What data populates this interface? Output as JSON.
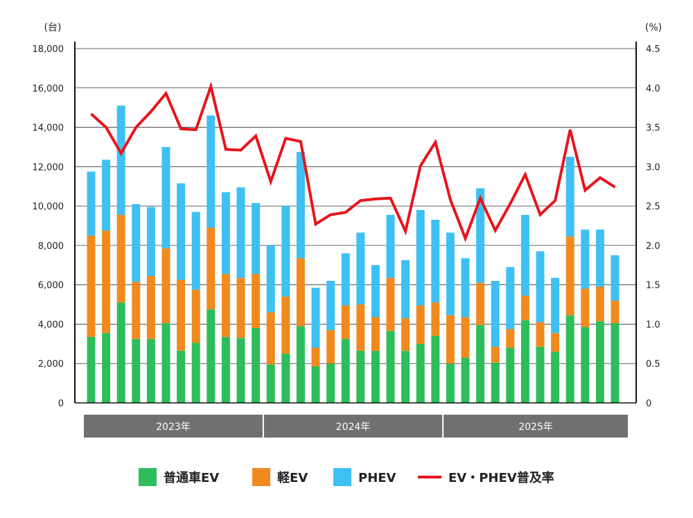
{
  "chart_data": {
    "type": "bar",
    "stacked": true,
    "y_left": {
      "unit": "(台)",
      "ylim": [
        0,
        18000
      ],
      "ticks": [
        "0",
        "2,000",
        "4,000",
        "6,000",
        "8,000",
        "10,000",
        "12,000",
        "14,000",
        "16,000",
        "18,000"
      ]
    },
    "y_right": {
      "unit": "(%)",
      "ylim": [
        0,
        4.5
      ],
      "ticks": [
        "0",
        "0.5",
        "1.0",
        "1.5",
        "2.0",
        "2.5",
        "3.0",
        "3.5",
        "4.0",
        "4.5"
      ]
    },
    "year_groups": [
      {
        "label": "2023年",
        "count": 12
      },
      {
        "label": "2024年",
        "count": 12
      },
      {
        "label": "2025年",
        "count": 12
      }
    ],
    "legend_position": "bottom",
    "grid": true,
    "series": [
      {
        "name": "普通車EV",
        "color": "#2dbd5b",
        "values": [
          3350,
          3550,
          5100,
          3250,
          3250,
          4050,
          2650,
          3050,
          4750,
          3350,
          3300,
          3800,
          1950,
          2500,
          3900,
          1850,
          2000,
          3250,
          2650,
          2650,
          3650,
          2650,
          3000,
          3400,
          2000,
          2300,
          3950,
          2050,
          2800,
          4200,
          2850,
          2600,
          4450,
          3850,
          4150,
          4050
        ]
      },
      {
        "name": "軽EV",
        "color": "#f08a1e",
        "values": [
          5150,
          5200,
          4450,
          2900,
          3200,
          3800,
          3600,
          2700,
          4150,
          3200,
          3050,
          2750,
          2650,
          2900,
          3450,
          950,
          1700,
          1700,
          2350,
          1700,
          2700,
          1650,
          1950,
          1700,
          2450,
          2050,
          2150,
          800,
          950,
          1250,
          1250,
          950,
          4000,
          1950,
          1750,
          1150
        ]
      },
      {
        "name": "PHEV",
        "color": "#3ec0f2",
        "values": [
          3250,
          3600,
          5550,
          3950,
          3500,
          5150,
          4900,
          3950,
          5700,
          4150,
          4600,
          3600,
          3400,
          4600,
          5400,
          3050,
          2500,
          2650,
          3650,
          2650,
          3200,
          2950,
          4850,
          4200,
          4200,
          3000,
          4800,
          3350,
          3150,
          4100,
          3600,
          2800,
          4050,
          3000,
          2900,
          2300
        ]
      },
      {
        "name": "EV・PHEV普及率",
        "color": "#e8141b",
        "type": "line",
        "values": [
          3.67,
          3.5,
          3.17,
          3.5,
          3.7,
          3.93,
          3.48,
          3.47,
          4.02,
          3.22,
          3.21,
          3.39,
          2.81,
          3.36,
          3.32,
          2.27,
          2.39,
          2.42,
          2.57,
          2.59,
          2.6,
          2.18,
          3.01,
          3.31,
          2.58,
          2.09,
          2.6,
          2.19,
          2.53,
          2.9,
          2.39,
          2.57,
          3.47,
          2.7,
          2.86,
          2.74
        ]
      }
    ]
  }
}
